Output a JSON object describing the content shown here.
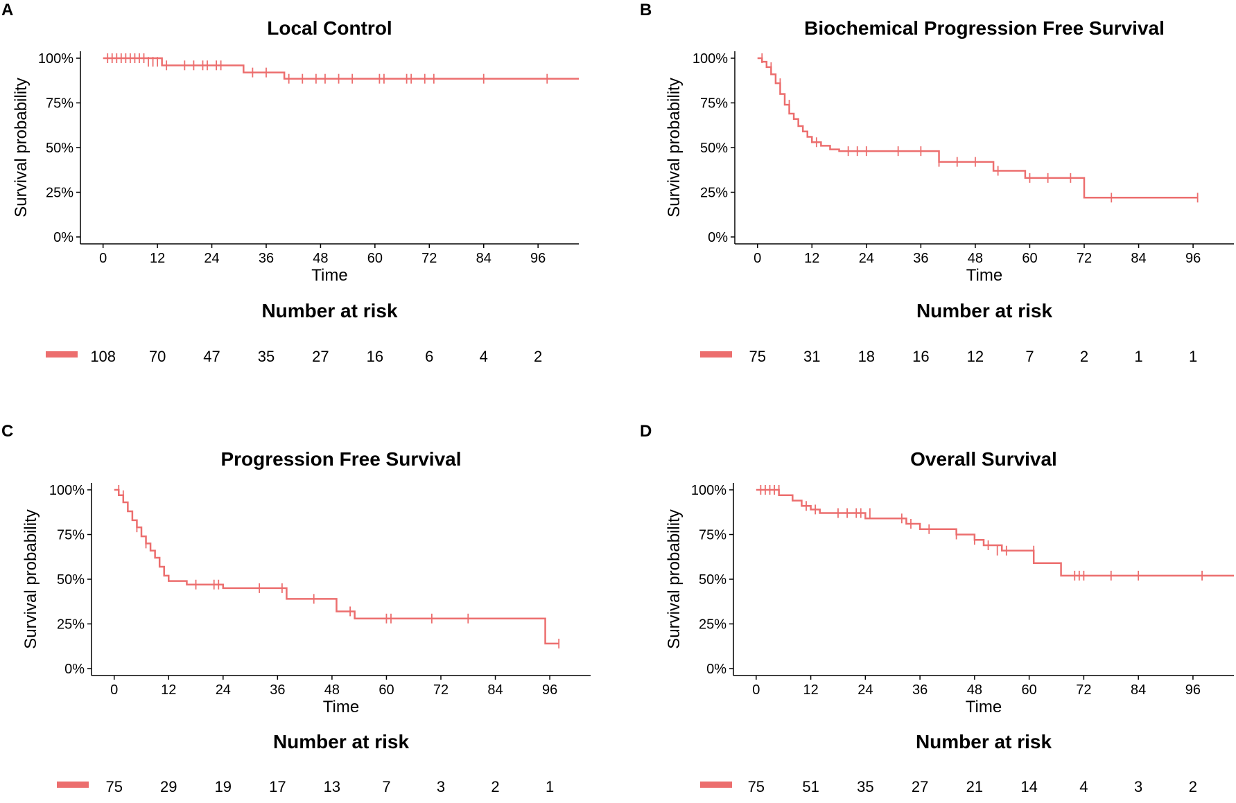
{
  "colors": {
    "curve": "#ec6e6e",
    "axis": "#000000",
    "background": "#ffffff"
  },
  "chart_data": [
    {
      "panel": "A",
      "type": "line",
      "title": "Local Control",
      "xlabel": "Time",
      "ylabel": "Survival probability",
      "xticks": [
        0,
        12,
        24,
        36,
        48,
        60,
        72,
        84,
        96
      ],
      "yticks": [
        "0%",
        "25%",
        "50%",
        "75%",
        "100%"
      ],
      "xlim": [
        -5,
        105
      ],
      "ylim": [
        0,
        1
      ],
      "steps": [
        [
          0,
          1.0
        ],
        [
          13,
          0.96
        ],
        [
          31,
          0.92
        ],
        [
          40,
          0.885
        ],
        [
          105,
          0.885
        ]
      ],
      "censored": [
        [
          1,
          1.0
        ],
        [
          2,
          1.0
        ],
        [
          3,
          1.0
        ],
        [
          4,
          1.0
        ],
        [
          5,
          1.0
        ],
        [
          6,
          1.0
        ],
        [
          7,
          1.0
        ],
        [
          8,
          1.0
        ],
        [
          9,
          1.0
        ],
        [
          10,
          0.98
        ],
        [
          11,
          0.98
        ],
        [
          12,
          0.98
        ],
        [
          14,
          0.96
        ],
        [
          18,
          0.96
        ],
        [
          20,
          0.96
        ],
        [
          22,
          0.96
        ],
        [
          23,
          0.96
        ],
        [
          25,
          0.96
        ],
        [
          26,
          0.96
        ],
        [
          33,
          0.92
        ],
        [
          36,
          0.92
        ],
        [
          41,
          0.885
        ],
        [
          44,
          0.885
        ],
        [
          47,
          0.885
        ],
        [
          49,
          0.885
        ],
        [
          52,
          0.885
        ],
        [
          55,
          0.885
        ],
        [
          61,
          0.885
        ],
        [
          62,
          0.885
        ],
        [
          67,
          0.885
        ],
        [
          68,
          0.885
        ],
        [
          71,
          0.885
        ],
        [
          73,
          0.885
        ],
        [
          84,
          0.885
        ],
        [
          98,
          0.885
        ]
      ],
      "risk_title": "Number at risk",
      "risk_numbers": [
        "108",
        "70",
        "47",
        "35",
        "27",
        "16",
        "6",
        "4",
        "2"
      ]
    },
    {
      "panel": "B",
      "type": "line",
      "title": "Biochemical Progression Free Survival",
      "xlabel": "Time",
      "ylabel": "Survival probability",
      "xticks": [
        0,
        12,
        24,
        36,
        48,
        60,
        72,
        84,
        96
      ],
      "yticks": [
        "0%",
        "25%",
        "50%",
        "75%",
        "100%"
      ],
      "xlim": [
        -5,
        105
      ],
      "ylim": [
        0,
        1
      ],
      "steps": [
        [
          0,
          1.0
        ],
        [
          1,
          0.98
        ],
        [
          2,
          0.95
        ],
        [
          3,
          0.91
        ],
        [
          4,
          0.86
        ],
        [
          5,
          0.8
        ],
        [
          6,
          0.74
        ],
        [
          7,
          0.69
        ],
        [
          8,
          0.66
        ],
        [
          9,
          0.62
        ],
        [
          10,
          0.59
        ],
        [
          11,
          0.56
        ],
        [
          12,
          0.53
        ],
        [
          14,
          0.51
        ],
        [
          16,
          0.49
        ],
        [
          18,
          0.48
        ],
        [
          40,
          0.42
        ],
        [
          52,
          0.37
        ],
        [
          59,
          0.33
        ],
        [
          72,
          0.22
        ],
        [
          97,
          0.22
        ]
      ],
      "censored": [
        [
          1,
          1.0
        ],
        [
          3,
          0.95
        ],
        [
          5,
          0.86
        ],
        [
          7,
          0.74
        ],
        [
          13,
          0.53
        ],
        [
          20,
          0.48
        ],
        [
          22,
          0.48
        ],
        [
          24,
          0.48
        ],
        [
          31,
          0.48
        ],
        [
          36,
          0.48
        ],
        [
          40,
          0.42
        ],
        [
          44,
          0.42
        ],
        [
          48,
          0.42
        ],
        [
          53,
          0.37
        ],
        [
          60,
          0.33
        ],
        [
          64,
          0.33
        ],
        [
          69,
          0.33
        ],
        [
          78,
          0.22
        ],
        [
          97,
          0.22
        ]
      ],
      "risk_title": "Number at risk",
      "risk_numbers": [
        "75",
        "31",
        "18",
        "16",
        "12",
        "7",
        "2",
        "1",
        "1"
      ]
    },
    {
      "panel": "C",
      "type": "line",
      "title": "Progression Free Survival",
      "xlabel": "Time",
      "ylabel": "Survival probability",
      "xticks": [
        0,
        12,
        24,
        36,
        48,
        60,
        72,
        84,
        96
      ],
      "yticks": [
        "0%",
        "25%",
        "50%",
        "75%",
        "100%"
      ],
      "xlim": [
        -5,
        105
      ],
      "ylim": [
        0,
        1
      ],
      "steps": [
        [
          0,
          1.0
        ],
        [
          1,
          0.97
        ],
        [
          2,
          0.93
        ],
        [
          3,
          0.88
        ],
        [
          4,
          0.83
        ],
        [
          5,
          0.79
        ],
        [
          6,
          0.74
        ],
        [
          7,
          0.7
        ],
        [
          8,
          0.66
        ],
        [
          9,
          0.62
        ],
        [
          10,
          0.57
        ],
        [
          11,
          0.52
        ],
        [
          12,
          0.49
        ],
        [
          16,
          0.47
        ],
        [
          24,
          0.45
        ],
        [
          38,
          0.39
        ],
        [
          49,
          0.32
        ],
        [
          53,
          0.28
        ],
        [
          95,
          0.14
        ],
        [
          98,
          0.14
        ]
      ],
      "censored": [
        [
          1,
          1.0
        ],
        [
          2,
          0.97
        ],
        [
          5,
          0.79
        ],
        [
          7,
          0.7
        ],
        [
          18,
          0.47
        ],
        [
          22,
          0.47
        ],
        [
          23,
          0.47
        ],
        [
          32,
          0.45
        ],
        [
          37,
          0.45
        ],
        [
          44,
          0.39
        ],
        [
          52,
          0.32
        ],
        [
          60,
          0.28
        ],
        [
          61,
          0.28
        ],
        [
          70,
          0.28
        ],
        [
          78,
          0.28
        ],
        [
          98,
          0.14
        ]
      ],
      "risk_title": "Number at risk",
      "risk_numbers": [
        "75",
        "29",
        "19",
        "17",
        "13",
        "7",
        "3",
        "2",
        "1"
      ]
    },
    {
      "panel": "D",
      "type": "line",
      "title": "Overall Survival",
      "xlabel": "Time",
      "ylabel": "Survival probability",
      "xticks": [
        0,
        12,
        24,
        36,
        48,
        60,
        72,
        84,
        96
      ],
      "yticks": [
        "0%",
        "25%",
        "50%",
        "75%",
        "100%"
      ],
      "xlim": [
        -5,
        105
      ],
      "ylim": [
        0,
        1
      ],
      "steps": [
        [
          0,
          1.0
        ],
        [
          5,
          0.97
        ],
        [
          8,
          0.94
        ],
        [
          10,
          0.91
        ],
        [
          12,
          0.89
        ],
        [
          14,
          0.87
        ],
        [
          24,
          0.84
        ],
        [
          33,
          0.81
        ],
        [
          36,
          0.78
        ],
        [
          44,
          0.75
        ],
        [
          48,
          0.72
        ],
        [
          50,
          0.69
        ],
        [
          54,
          0.66
        ],
        [
          61,
          0.59
        ],
        [
          67,
          0.52
        ],
        [
          105,
          0.52
        ]
      ],
      "censored": [
        [
          1,
          1.0
        ],
        [
          2,
          1.0
        ],
        [
          3,
          1.0
        ],
        [
          4,
          1.0
        ],
        [
          5,
          1.0
        ],
        [
          11,
          0.91
        ],
        [
          13,
          0.89
        ],
        [
          18,
          0.87
        ],
        [
          20,
          0.87
        ],
        [
          22,
          0.87
        ],
        [
          23,
          0.87
        ],
        [
          25,
          0.87
        ],
        [
          32,
          0.84
        ],
        [
          34,
          0.81
        ],
        [
          38,
          0.78
        ],
        [
          44,
          0.75
        ],
        [
          48,
          0.72
        ],
        [
          51,
          0.69
        ],
        [
          53,
          0.66
        ],
        [
          55,
          0.66
        ],
        [
          61,
          0.66
        ],
        [
          70,
          0.52
        ],
        [
          71,
          0.52
        ],
        [
          72,
          0.52
        ],
        [
          78,
          0.52
        ],
        [
          84,
          0.52
        ],
        [
          98,
          0.52
        ]
      ],
      "risk_title": "Number at risk",
      "risk_numbers": [
        "75",
        "51",
        "35",
        "27",
        "21",
        "14",
        "4",
        "3",
        "2"
      ]
    }
  ]
}
